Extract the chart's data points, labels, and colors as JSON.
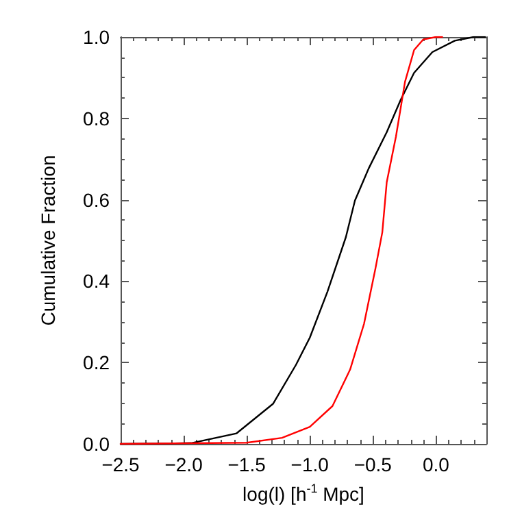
{
  "chart_data": {
    "type": "line",
    "xlabel": "log(l) [h$^{-1}$ Mpc]",
    "ylabel": "Cumulative Fraction",
    "xlim": [
      -2.5,
      0.4
    ],
    "xticks": [
      {
        "value": -2.5,
        "label": "−2.5"
      },
      {
        "value": -2.0,
        "label": "−2.0"
      },
      {
        "value": -1.5,
        "label": "−1.5"
      },
      {
        "value": -1.0,
        "label": "−1.0"
      },
      {
        "value": -0.5,
        "label": "−0.5"
      },
      {
        "value": 0.0,
        "label": "0.0"
      }
    ],
    "ylim": [
      0,
      1
    ],
    "yticks": [
      {
        "value": 0,
        "label": "0.0"
      },
      {
        "value": 0.2,
        "label": "0.2"
      },
      {
        "value": 0.4,
        "label": "0.4"
      },
      {
        "value": 0.6,
        "label": "0.6"
      },
      {
        "value": 0.8,
        "label": "0.8"
      },
      {
        "value": 1,
        "label": "1.0"
      }
    ],
    "grid": false,
    "marker": "none",
    "line_style": "solid",
    "series": [
      {
        "color": "#000000",
        "x": [
          -2.5,
          -1.94,
          -1.58,
          -1.29,
          -1.11,
          -1.0,
          -0.86,
          -0.714,
          -0.642,
          -0.533,
          -0.39,
          -0.28,
          -0.173,
          -0.028,
          0.15,
          0.3,
          0.39
        ],
        "values": [
          0,
          0.002,
          0.026,
          0.099,
          0.194,
          0.261,
          0.374,
          0.508,
          0.598,
          0.677,
          0.766,
          0.845,
          0.912,
          0.963,
          0.991,
          1.0,
          1.0
        ]
      },
      {
        "color": "#ff0000",
        "x": [
          -2.5,
          -1.5,
          -1.22,
          -1.0,
          -0.82,
          -0.68,
          -0.57,
          -0.48,
          -0.425,
          -0.39,
          -0.317,
          -0.245,
          -0.173,
          -0.1,
          0.0,
          0.05
        ],
        "values": [
          0,
          0.003,
          0.015,
          0.042,
          0.093,
          0.183,
          0.295,
          0.43,
          0.52,
          0.643,
          0.755,
          0.89,
          0.968,
          0.994,
          1.0,
          1.0
        ]
      }
    ]
  }
}
